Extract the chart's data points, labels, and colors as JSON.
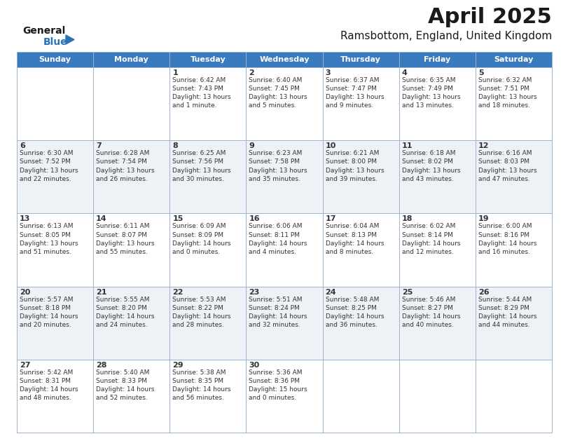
{
  "title": "April 2025",
  "subtitle": "Ramsbottom, England, United Kingdom",
  "header_color": "#3a7bbf",
  "header_text_color": "#ffffff",
  "bg_color": "#ffffff",
  "alt_row_color": "#eef2f7",
  "grid_color": "#9ab5d0",
  "text_color": "#333333",
  "day_headers": [
    "Sunday",
    "Monday",
    "Tuesday",
    "Wednesday",
    "Thursday",
    "Friday",
    "Saturday"
  ],
  "weeks": [
    [
      {
        "day": "",
        "info": ""
      },
      {
        "day": "",
        "info": ""
      },
      {
        "day": "1",
        "info": "Sunrise: 6:42 AM\nSunset: 7:43 PM\nDaylight: 13 hours\nand 1 minute."
      },
      {
        "day": "2",
        "info": "Sunrise: 6:40 AM\nSunset: 7:45 PM\nDaylight: 13 hours\nand 5 minutes."
      },
      {
        "day": "3",
        "info": "Sunrise: 6:37 AM\nSunset: 7:47 PM\nDaylight: 13 hours\nand 9 minutes."
      },
      {
        "day": "4",
        "info": "Sunrise: 6:35 AM\nSunset: 7:49 PM\nDaylight: 13 hours\nand 13 minutes."
      },
      {
        "day": "5",
        "info": "Sunrise: 6:32 AM\nSunset: 7:51 PM\nDaylight: 13 hours\nand 18 minutes."
      }
    ],
    [
      {
        "day": "6",
        "info": "Sunrise: 6:30 AM\nSunset: 7:52 PM\nDaylight: 13 hours\nand 22 minutes."
      },
      {
        "day": "7",
        "info": "Sunrise: 6:28 AM\nSunset: 7:54 PM\nDaylight: 13 hours\nand 26 minutes."
      },
      {
        "day": "8",
        "info": "Sunrise: 6:25 AM\nSunset: 7:56 PM\nDaylight: 13 hours\nand 30 minutes."
      },
      {
        "day": "9",
        "info": "Sunrise: 6:23 AM\nSunset: 7:58 PM\nDaylight: 13 hours\nand 35 minutes."
      },
      {
        "day": "10",
        "info": "Sunrise: 6:21 AM\nSunset: 8:00 PM\nDaylight: 13 hours\nand 39 minutes."
      },
      {
        "day": "11",
        "info": "Sunrise: 6:18 AM\nSunset: 8:02 PM\nDaylight: 13 hours\nand 43 minutes."
      },
      {
        "day": "12",
        "info": "Sunrise: 6:16 AM\nSunset: 8:03 PM\nDaylight: 13 hours\nand 47 minutes."
      }
    ],
    [
      {
        "day": "13",
        "info": "Sunrise: 6:13 AM\nSunset: 8:05 PM\nDaylight: 13 hours\nand 51 minutes."
      },
      {
        "day": "14",
        "info": "Sunrise: 6:11 AM\nSunset: 8:07 PM\nDaylight: 13 hours\nand 55 minutes."
      },
      {
        "day": "15",
        "info": "Sunrise: 6:09 AM\nSunset: 8:09 PM\nDaylight: 14 hours\nand 0 minutes."
      },
      {
        "day": "16",
        "info": "Sunrise: 6:06 AM\nSunset: 8:11 PM\nDaylight: 14 hours\nand 4 minutes."
      },
      {
        "day": "17",
        "info": "Sunrise: 6:04 AM\nSunset: 8:13 PM\nDaylight: 14 hours\nand 8 minutes."
      },
      {
        "day": "18",
        "info": "Sunrise: 6:02 AM\nSunset: 8:14 PM\nDaylight: 14 hours\nand 12 minutes."
      },
      {
        "day": "19",
        "info": "Sunrise: 6:00 AM\nSunset: 8:16 PM\nDaylight: 14 hours\nand 16 minutes."
      }
    ],
    [
      {
        "day": "20",
        "info": "Sunrise: 5:57 AM\nSunset: 8:18 PM\nDaylight: 14 hours\nand 20 minutes."
      },
      {
        "day": "21",
        "info": "Sunrise: 5:55 AM\nSunset: 8:20 PM\nDaylight: 14 hours\nand 24 minutes."
      },
      {
        "day": "22",
        "info": "Sunrise: 5:53 AM\nSunset: 8:22 PM\nDaylight: 14 hours\nand 28 minutes."
      },
      {
        "day": "23",
        "info": "Sunrise: 5:51 AM\nSunset: 8:24 PM\nDaylight: 14 hours\nand 32 minutes."
      },
      {
        "day": "24",
        "info": "Sunrise: 5:48 AM\nSunset: 8:25 PM\nDaylight: 14 hours\nand 36 minutes."
      },
      {
        "day": "25",
        "info": "Sunrise: 5:46 AM\nSunset: 8:27 PM\nDaylight: 14 hours\nand 40 minutes."
      },
      {
        "day": "26",
        "info": "Sunrise: 5:44 AM\nSunset: 8:29 PM\nDaylight: 14 hours\nand 44 minutes."
      }
    ],
    [
      {
        "day": "27",
        "info": "Sunrise: 5:42 AM\nSunset: 8:31 PM\nDaylight: 14 hours\nand 48 minutes."
      },
      {
        "day": "28",
        "info": "Sunrise: 5:40 AM\nSunset: 8:33 PM\nDaylight: 14 hours\nand 52 minutes."
      },
      {
        "day": "29",
        "info": "Sunrise: 5:38 AM\nSunset: 8:35 PM\nDaylight: 14 hours\nand 56 minutes."
      },
      {
        "day": "30",
        "info": "Sunrise: 5:36 AM\nSunset: 8:36 PM\nDaylight: 15 hours\nand 0 minutes."
      },
      {
        "day": "",
        "info": ""
      },
      {
        "day": "",
        "info": ""
      },
      {
        "day": "",
        "info": ""
      }
    ]
  ],
  "logo_text_general": "General",
  "logo_text_blue": "Blue",
  "logo_color_general": "#1a1a1a",
  "logo_color_blue": "#2a72b8",
  "logo_triangle_color": "#2a72b8",
  "title_fontsize": 22,
  "subtitle_fontsize": 11,
  "header_fontsize": 8,
  "day_num_fontsize": 8,
  "cell_text_fontsize": 6.5
}
